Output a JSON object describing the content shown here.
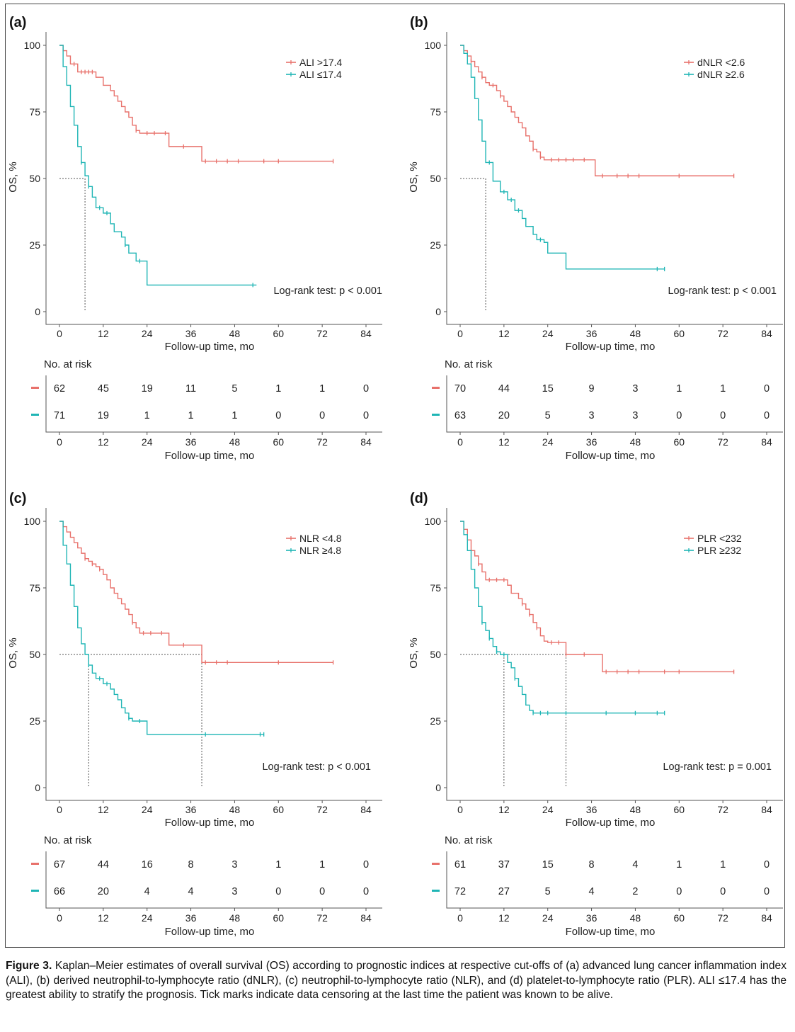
{
  "caption": {
    "label": "Figure 3.",
    "text": "Kaplan–Meier estimates of overall survival (OS) according to prognostic indices at respective cut-offs of (a) advanced lung cancer inflammation index (ALI), (b) derived neutrophil-to-lymphocyte ratio (dNLR), (c) neutrophil-to-lymphocyte ratio (NLR), and (d) platelet-to-lymphocyte ratio (PLR). ALI ≤17.4 has the greatest ability to stratify the prognosis. Tick marks indicate data censoring at the last time the patient was known to be alive."
  },
  "colors": {
    "high": "#e8716b",
    "low": "#1fb5b5",
    "axis": "#555555",
    "guide": "#555555"
  },
  "chart_data": [
    {
      "type": "line",
      "panel_label": "(a)",
      "xlabel": "Follow-up time, mo",
      "ylabel": "OS, %",
      "xlim": [
        0,
        84
      ],
      "ylim": [
        0,
        100
      ],
      "xticks": [
        0,
        12,
        24,
        36,
        48,
        60,
        72,
        84
      ],
      "yticks": [
        0,
        25,
        50,
        75,
        100
      ],
      "legend_position": "top-right",
      "annotation": "Log-rank test: p < 0.001",
      "series": [
        {
          "name": "ALI >17.4",
          "group": "high",
          "x": [
            0,
            1,
            2,
            3,
            5,
            10,
            12,
            14,
            15,
            16,
            17,
            18,
            19,
            20,
            21,
            22,
            23,
            30,
            39,
            75
          ],
          "y": [
            100,
            98,
            96,
            93,
            90,
            88,
            85,
            83,
            81,
            79,
            77,
            75,
            73,
            70,
            68,
            67,
            67,
            62,
            56.5,
            56.5
          ],
          "censored_x": [
            4,
            6,
            7,
            8,
            9,
            21,
            24,
            26,
            29,
            34,
            40,
            43,
            46,
            49,
            56,
            60,
            75
          ]
        },
        {
          "name": "ALI ≤17.4",
          "group": "low",
          "x": [
            0,
            1,
            2,
            3,
            4,
            5,
            6,
            7,
            8,
            9,
            10,
            12,
            14,
            15,
            17,
            18,
            19,
            21,
            24,
            54
          ],
          "y": [
            100,
            92,
            85,
            77,
            70,
            62,
            56,
            51,
            47,
            43,
            39,
            37,
            33,
            30,
            28,
            25,
            22,
            19,
            10,
            10
          ],
          "censored_x": [
            6,
            8,
            11,
            13,
            18,
            22,
            53
          ]
        }
      ],
      "median_guides": [
        {
          "x": 7,
          "y": 50
        }
      ],
      "risk_table": {
        "title": "No. at risk",
        "times": [
          0,
          12,
          24,
          36,
          48,
          60,
          72,
          84
        ],
        "rows": [
          {
            "group": "high",
            "counts": [
              "62",
              "45",
              "19",
              "11",
              "5",
              "1",
              "1",
              "0"
            ]
          },
          {
            "group": "low",
            "counts": [
              "71",
              "19",
              "1",
              "1",
              "1",
              "0",
              "0",
              "0"
            ]
          }
        ],
        "xlabel": "Follow-up time, mo"
      }
    },
    {
      "type": "line",
      "panel_label": "(b)",
      "xlabel": "Follow-up time, mo",
      "ylabel": "OS, %",
      "xlim": [
        0,
        84
      ],
      "ylim": [
        0,
        100
      ],
      "xticks": [
        0,
        12,
        24,
        36,
        48,
        60,
        72,
        84
      ],
      "yticks": [
        0,
        25,
        50,
        75,
        100
      ],
      "legend_position": "top-right",
      "annotation": "Log-rank test: p < 0.001",
      "series": [
        {
          "name": "dNLR <2.6",
          "group": "high",
          "x": [
            0,
            1,
            2,
            3,
            4,
            5,
            6,
            7,
            8,
            10,
            11,
            12,
            13,
            14,
            15,
            16,
            17,
            18,
            19,
            20,
            21,
            22,
            23,
            37,
            75
          ],
          "y": [
            100,
            98,
            96,
            94,
            92,
            90,
            88,
            86,
            85,
            83,
            81,
            79,
            77,
            75,
            73,
            71,
            69,
            66,
            64,
            61,
            60,
            58,
            57,
            51,
            51
          ],
          "censored_x": [
            3,
            6,
            9,
            11,
            20,
            22,
            25,
            27,
            29,
            31,
            34,
            39,
            43,
            46,
            49,
            60,
            75
          ]
        },
        {
          "name": "dNLR ≥2.6",
          "group": "low",
          "x": [
            0,
            1,
            2,
            3,
            4,
            5,
            6,
            7,
            9,
            11,
            13,
            15,
            17,
            18,
            20,
            21,
            23,
            24,
            29,
            56
          ],
          "y": [
            100,
            97,
            93,
            88,
            80,
            72,
            64,
            56,
            49,
            45,
            42,
            38,
            35,
            32,
            29,
            27,
            26,
            22,
            16,
            16
          ],
          "censored_x": [
            8,
            12,
            14,
            16,
            22,
            54,
            56
          ]
        }
      ],
      "median_guides": [
        {
          "x": 7,
          "y": 50
        }
      ],
      "risk_table": {
        "title": "No. at risk",
        "times": [
          0,
          12,
          24,
          36,
          48,
          60,
          72,
          84
        ],
        "rows": [
          {
            "group": "high",
            "counts": [
              "70",
              "44",
              "15",
              "9",
              "3",
              "1",
              "1",
              "0"
            ]
          },
          {
            "group": "low",
            "counts": [
              "63",
              "20",
              "5",
              "3",
              "3",
              "0",
              "0",
              "0"
            ]
          }
        ],
        "xlabel": "Follow-up time, mo"
      }
    },
    {
      "type": "line",
      "panel_label": "(c)",
      "xlabel": "Follow-up time, mo",
      "ylabel": "OS, %",
      "xlim": [
        0,
        84
      ],
      "ylim": [
        0,
        100
      ],
      "xticks": [
        0,
        12,
        24,
        36,
        48,
        60,
        72,
        84
      ],
      "yticks": [
        0,
        25,
        50,
        75,
        100
      ],
      "legend_position": "top-right",
      "annotation": "Log-rank test: p < 0.001",
      "series": [
        {
          "name": "NLR <4.8",
          "group": "high",
          "x": [
            0,
            1,
            2,
            3,
            4,
            5,
            6,
            7,
            8,
            9,
            10,
            11,
            12,
            13,
            14,
            15,
            16,
            17,
            18,
            19,
            20,
            21,
            22,
            24,
            30,
            39,
            75
          ],
          "y": [
            100,
            98,
            96,
            94,
            92,
            90,
            88,
            86,
            85,
            84,
            83,
            82,
            80,
            78,
            75,
            73,
            71,
            69,
            67,
            65,
            62,
            60,
            58,
            58,
            53.5,
            47,
            47
          ],
          "censored_x": [
            7,
            9,
            11,
            20,
            23,
            25,
            28,
            34,
            40,
            43,
            46,
            60,
            75
          ]
        },
        {
          "name": "NLR ≥4.8",
          "group": "low",
          "x": [
            0,
            1,
            2,
            3,
            4,
            5,
            6,
            7,
            8,
            9,
            10,
            12,
            14,
            15,
            16,
            17,
            18,
            19,
            20,
            21,
            24,
            56
          ],
          "y": [
            100,
            91,
            84,
            76,
            68,
            60,
            54,
            50,
            46,
            43,
            41,
            39,
            37,
            35,
            33,
            30,
            28,
            26,
            25,
            25,
            20,
            20
          ],
          "censored_x": [
            8,
            11,
            13,
            19,
            22,
            40,
            55,
            56
          ]
        }
      ],
      "median_guides": [
        {
          "x": 8,
          "y": 50
        },
        {
          "x": 39,
          "y": 50
        }
      ],
      "risk_table": {
        "title": "No. at risk",
        "times": [
          0,
          12,
          24,
          36,
          48,
          60,
          72,
          84
        ],
        "rows": [
          {
            "group": "high",
            "counts": [
              "67",
              "44",
              "16",
              "8",
              "3",
              "1",
              "1",
              "0"
            ]
          },
          {
            "group": "low",
            "counts": [
              "66",
              "20",
              "4",
              "4",
              "3",
              "0",
              "0",
              "0"
            ]
          }
        ],
        "xlabel": "Follow-up time, mo"
      }
    },
    {
      "type": "line",
      "panel_label": "(d)",
      "xlabel": "Follow-up time, mo",
      "ylabel": "OS, %",
      "xlim": [
        0,
        84
      ],
      "ylim": [
        0,
        100
      ],
      "xticks": [
        0,
        12,
        24,
        36,
        48,
        60,
        72,
        84
      ],
      "yticks": [
        0,
        25,
        50,
        75,
        100
      ],
      "legend_position": "top-right",
      "annotation": "Log-rank test: p = 0.001",
      "series": [
        {
          "name": "PLR <232",
          "group": "high",
          "x": [
            0,
            1,
            2,
            3,
            4,
            5,
            6,
            7,
            13,
            14,
            16,
            17,
            18,
            19,
            20,
            21,
            22,
            23,
            24,
            29,
            39,
            75
          ],
          "y": [
            100,
            97,
            93,
            89,
            87,
            84,
            81,
            78,
            76,
            73,
            71,
            69,
            67,
            65,
            62,
            60,
            57,
            55,
            54.5,
            50,
            43.5,
            43.5
          ],
          "censored_x": [
            5,
            8,
            10,
            12,
            17,
            19,
            21,
            25,
            27,
            29,
            34,
            40,
            43,
            46,
            49,
            56,
            60,
            75
          ]
        },
        {
          "name": "PLR ≥232",
          "group": "low",
          "x": [
            0,
            1,
            2,
            3,
            4,
            5,
            6,
            7,
            8,
            9,
            10,
            11,
            13,
            14,
            15,
            16,
            17,
            18,
            19,
            20,
            56
          ],
          "y": [
            100,
            95,
            89,
            82,
            75,
            68,
            62,
            59,
            56,
            53,
            51,
            50,
            47,
            45,
            41,
            38,
            35,
            31,
            29,
            28,
            28
          ],
          "censored_x": [
            6,
            8,
            10,
            12,
            15,
            20,
            22,
            24,
            29,
            40,
            48,
            54,
            56
          ]
        }
      ],
      "median_guides": [
        {
          "x": 12,
          "y": 50
        },
        {
          "x": 29,
          "y": 50
        }
      ],
      "risk_table": {
        "title": "No. at risk",
        "times": [
          0,
          12,
          24,
          36,
          48,
          60,
          72,
          84
        ],
        "rows": [
          {
            "group": "high",
            "counts": [
              "61",
              "37",
              "15",
              "8",
              "4",
              "1",
              "1",
              "0"
            ]
          },
          {
            "group": "low",
            "counts": [
              "72",
              "27",
              "5",
              "4",
              "2",
              "0",
              "0",
              "0"
            ]
          }
        ],
        "xlabel": "Follow-up time, mo"
      }
    }
  ]
}
